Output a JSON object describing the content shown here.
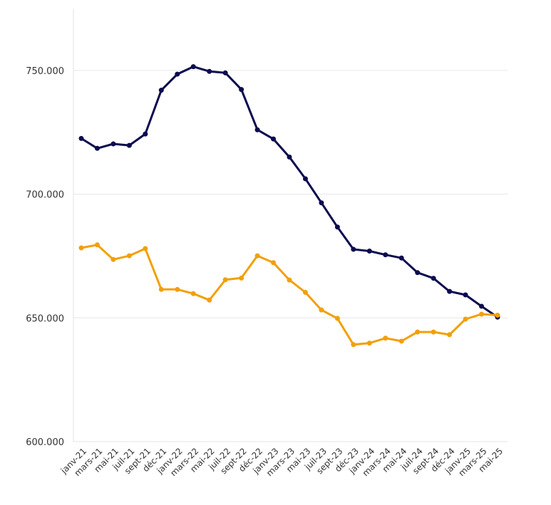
{
  "chart_data": {
    "type": "line",
    "title": "",
    "xlabel": "",
    "ylabel": "",
    "ylim": [
      600000,
      775000
    ],
    "y_ticks": [
      600000,
      650000,
      700000,
      750000
    ],
    "y_tick_labels": [
      "600.000",
      "650.000",
      "700.000",
      "750.000"
    ],
    "grid": true,
    "legend": "none",
    "categories": [
      "janv-21",
      "mars-21",
      "mai-21",
      "juil-21",
      "sept-21",
      "déc-21",
      "janv-22",
      "mars-22",
      "mai-22",
      "juil-22",
      "sept-22",
      "déc-22",
      "janv-23",
      "mars-23",
      "mai-23",
      "juil-23",
      "sept-23",
      "déc-23",
      "janv-24",
      "mars-24",
      "mai-24",
      "juil-24",
      "sept-24",
      "déc-24",
      "janv-25",
      "mars-25",
      "mai-25"
    ],
    "series": [
      {
        "color": "#0b0b4f",
        "values": [
          722500,
          718500,
          720300,
          719700,
          724300,
          742000,
          748500,
          751500,
          749600,
          749000,
          742300,
          726000,
          722300,
          715000,
          706200,
          696500,
          686700,
          677700,
          677000,
          675500,
          674200,
          668300,
          666000,
          660700,
          659300,
          654700,
          650300
        ]
      },
      {
        "color": "#f2a007",
        "values": [
          678300,
          679500,
          673600,
          675100,
          678000,
          661500,
          661500,
          659800,
          657200,
          665400,
          666100,
          675100,
          672300,
          665300,
          660300,
          653200,
          649800,
          639200,
          639800,
          641800,
          640600,
          644300,
          644300,
          643200,
          649500,
          651500,
          651100
        ]
      }
    ]
  }
}
